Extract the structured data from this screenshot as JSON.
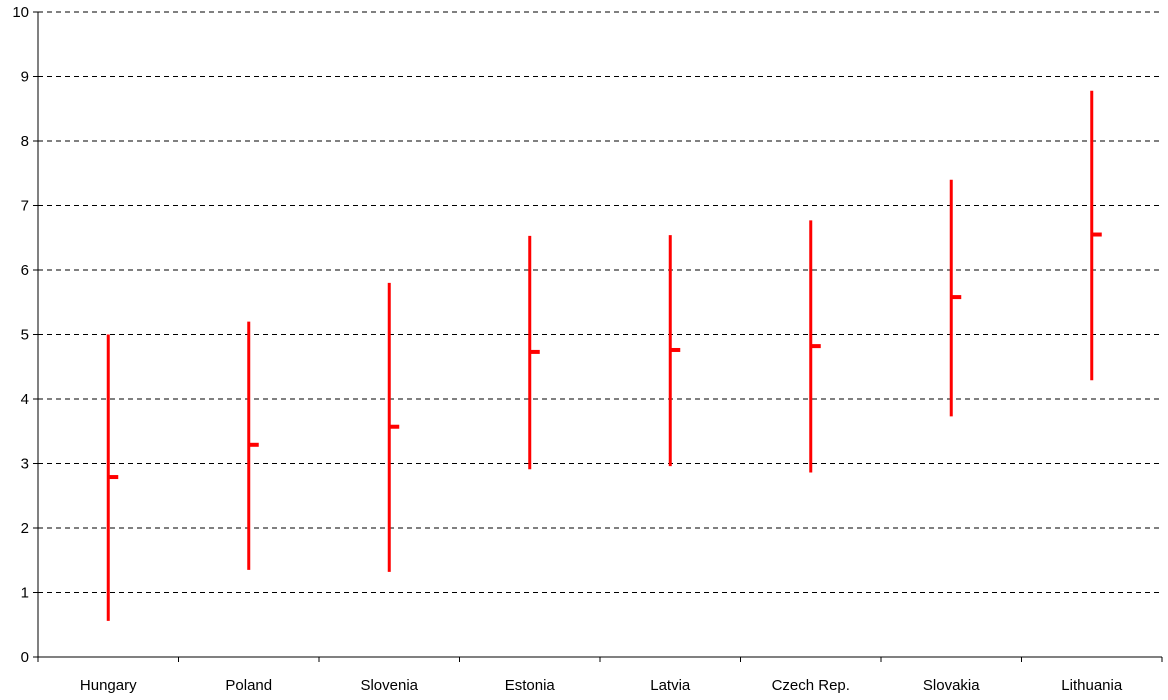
{
  "chart_data": {
    "type": "high-low-close",
    "title": "",
    "xlabel": "",
    "ylabel": "",
    "ylim": [
      0,
      10
    ],
    "yticks": [
      0,
      1,
      2,
      3,
      4,
      5,
      6,
      7,
      8,
      9,
      10
    ],
    "grid": true,
    "legend": "none",
    "categories": [
      "Hungary",
      "Poland",
      "Slovenia",
      "Estonia",
      "Latvia",
      "Czech Rep.",
      "Slovakia",
      "Lithuania"
    ],
    "high": [
      5.0,
      5.2,
      5.8,
      6.53,
      6.54,
      6.77,
      7.4,
      8.78
    ],
    "low": [
      0.56,
      1.35,
      1.32,
      2.91,
      2.96,
      2.86,
      3.73,
      4.29
    ],
    "close": [
      2.79,
      3.29,
      3.57,
      4.73,
      4.76,
      4.82,
      5.58,
      6.55
    ],
    "color": "#ff0000"
  }
}
